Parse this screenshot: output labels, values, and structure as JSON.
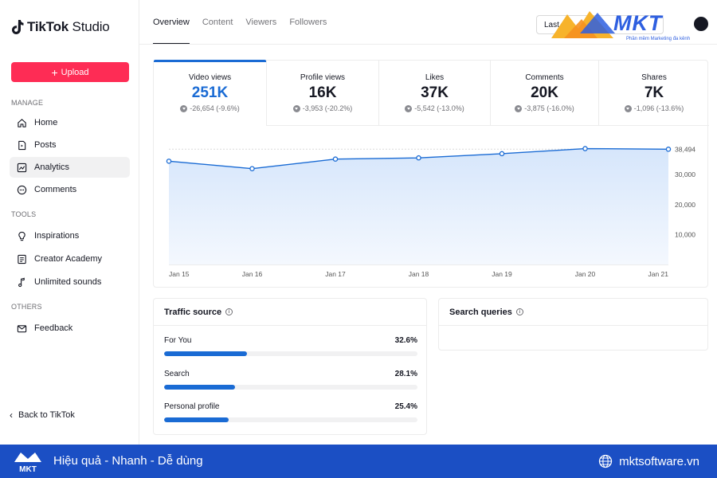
{
  "app": {
    "brand_bold": "TikTok",
    "brand_light": " Studio"
  },
  "sidebar": {
    "upload_label": "Upload",
    "sections": {
      "manage": "MANAGE",
      "tools": "TOOLS",
      "others": "OTHERS"
    },
    "items": [
      {
        "label": "Home",
        "icon": "home-icon"
      },
      {
        "label": "Posts",
        "icon": "posts-icon"
      },
      {
        "label": "Analytics",
        "icon": "analytics-icon",
        "active": true
      },
      {
        "label": "Comments",
        "icon": "comments-icon"
      },
      {
        "label": "Inspirations",
        "icon": "lightbulb-icon"
      },
      {
        "label": "Creator Academy",
        "icon": "academy-icon"
      },
      {
        "label": "Unlimited sounds",
        "icon": "music-note-icon"
      },
      {
        "label": "Feedback",
        "icon": "mail-icon"
      }
    ],
    "back_label": "Back to TikTok"
  },
  "tabs": [
    {
      "label": "Overview",
      "active": true
    },
    {
      "label": "Content"
    },
    {
      "label": "Viewers"
    },
    {
      "label": "Followers"
    }
  ],
  "date_range": {
    "label": "Last"
  },
  "watermark": {
    "brand": "MKT",
    "tagline": "Phần mềm Marketing đa kênh"
  },
  "metrics": [
    {
      "label": "Video views",
      "value": "251K",
      "delta": "-26,654 (-9.6%)",
      "active": true
    },
    {
      "label": "Profile views",
      "value": "16K",
      "delta": "-3,953 (-20.2%)"
    },
    {
      "label": "Likes",
      "value": "37K",
      "delta": "-5,542 (-13.0%)"
    },
    {
      "label": "Comments",
      "value": "20K",
      "delta": "-3,875 (-16.0%)"
    },
    {
      "label": "Shares",
      "value": "7K",
      "delta": "-1,096 (-13.6%)"
    }
  ],
  "chart_data": {
    "type": "area",
    "x": [
      "Jan 15",
      "Jan 16",
      "Jan 17",
      "Jan 18",
      "Jan 19",
      "Jan 20",
      "Jan 21"
    ],
    "values": [
      34500,
      32000,
      35200,
      35600,
      37000,
      38700,
      38494
    ],
    "ytick_labels": [
      "10,000",
      "20,000",
      "30,000",
      "38,494"
    ],
    "yticks": [
      10000,
      20000,
      30000,
      38494
    ],
    "ylim": [
      0,
      41500
    ],
    "grid": true,
    "color": "#1a6bd4"
  },
  "traffic": {
    "title": "Traffic source",
    "sources": [
      {
        "label": "For You",
        "pct_label": "32.6%",
        "pct": 32.6
      },
      {
        "label": "Search",
        "pct_label": "28.1%",
        "pct": 28.1
      },
      {
        "label": "Personal profile",
        "pct_label": "25.4%",
        "pct": 25.4
      }
    ]
  },
  "queries": {
    "title": "Search queries"
  },
  "footer": {
    "logo_text": "MKT",
    "slogan": "Hiệu quả - Nhanh - Dễ dùng",
    "site": "mktsoftware.vn"
  },
  "colors": {
    "accent": "#1a6bd4",
    "upload": "#fe2c55",
    "footer": "#1b4fc4"
  }
}
